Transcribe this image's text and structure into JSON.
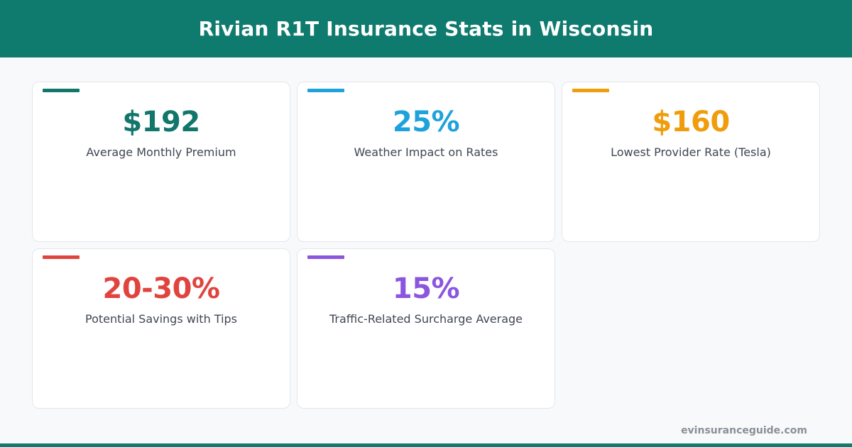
{
  "header": {
    "title": "Rivian R1T Insurance Stats in Wisconsin"
  },
  "stats": [
    {
      "value": "$192",
      "label": "Average Monthly Premium",
      "color": "#13766b"
    },
    {
      "value": "25%",
      "label": "Weather Impact on Rates",
      "color": "#1ea2dc"
    },
    {
      "value": "$160",
      "label": "Lowest Provider Rate (Tesla)",
      "color": "#ef9d0c"
    },
    {
      "value": "20-30%",
      "label": "Potential Savings with Tips",
      "color": "#e0443f"
    },
    {
      "value": "15%",
      "label": "Traffic-Related Surcharge Average",
      "color": "#8b55de"
    }
  ],
  "footer": {
    "site": "evinsuranceguide.com"
  },
  "colors": {
    "brand": "#0f7a6e"
  }
}
